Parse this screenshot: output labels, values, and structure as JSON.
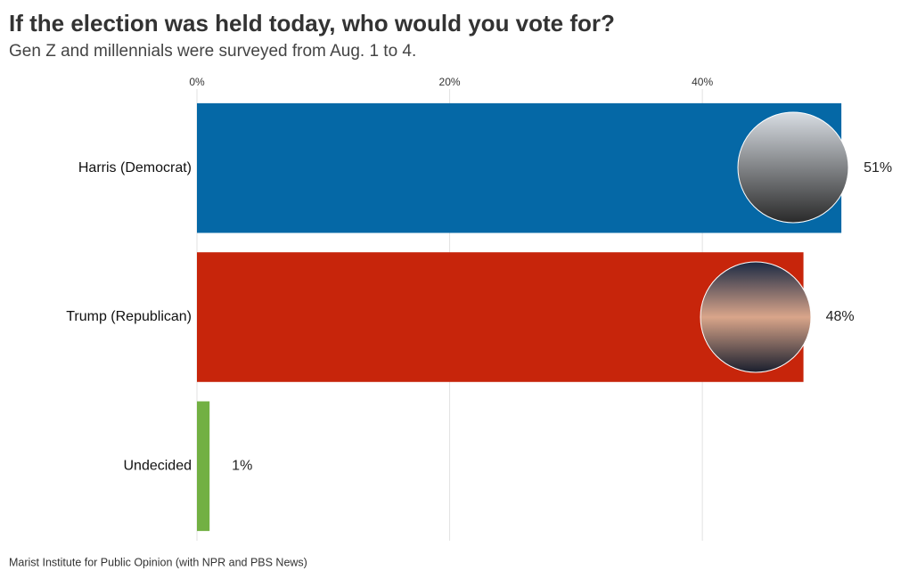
{
  "chart_data": {
    "type": "bar",
    "orientation": "horizontal",
    "title": "If the election was held today, who would you vote for?",
    "subtitle": "Gen Z and millennials were surveyed from Aug. 1 to 4.",
    "source": "Marist Institute for Public Opinion (with NPR and PBS News)",
    "categories": [
      "Harris (Democrat)",
      "Trump (Republican)",
      "Undecided"
    ],
    "values": [
      51,
      48,
      1
    ],
    "value_labels": [
      "51%",
      "48%",
      "1%"
    ],
    "colors": [
      "#0568a6",
      "#c7250b",
      "#72b043"
    ],
    "xlim": [
      0,
      56
    ],
    "xticks": [
      {
        "value": 0,
        "label": "0%"
      },
      {
        "value": 20,
        "label": "20%"
      },
      {
        "value": 40,
        "label": "40%"
      }
    ],
    "grid": true
  }
}
